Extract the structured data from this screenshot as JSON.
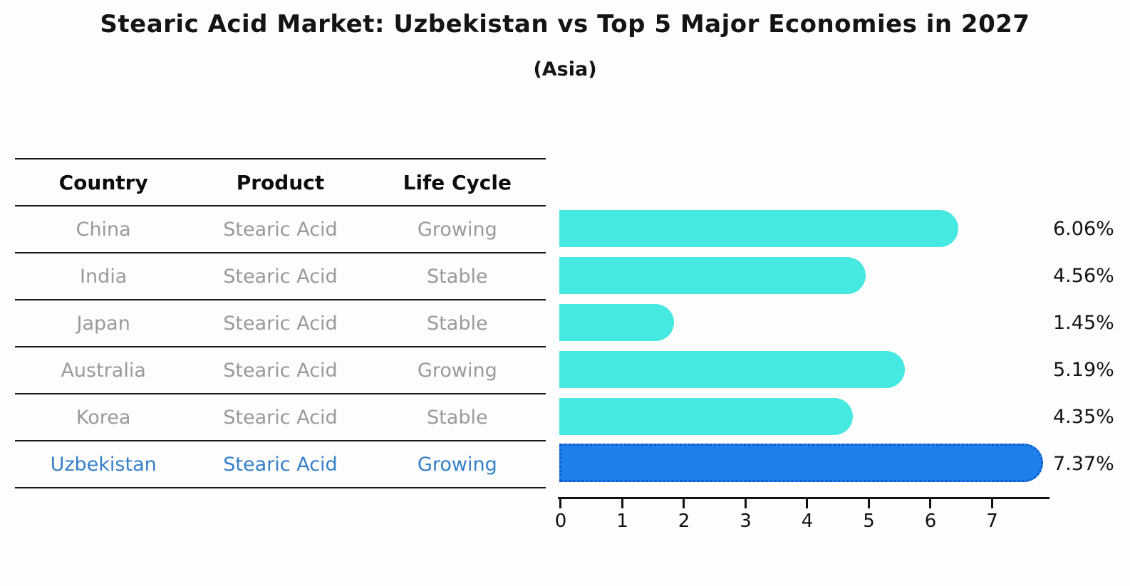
{
  "title": "Stearic Acid Market: Uzbekistan vs Top 5 Major Economies in 2027",
  "subtitle": "(Asia)",
  "table": {
    "headers": [
      "Country",
      "Product",
      "Life Cycle"
    ],
    "rows": [
      {
        "country": "China",
        "product": "Stearic Acid",
        "life_cycle": "Growing",
        "highlight": false
      },
      {
        "country": "India",
        "product": "Stearic Acid",
        "life_cycle": "Stable",
        "highlight": false
      },
      {
        "country": "Japan",
        "product": "Stearic Acid",
        "life_cycle": "Stable",
        "highlight": false
      },
      {
        "country": "Australia",
        "product": "Stearic Acid",
        "life_cycle": "Growing",
        "highlight": false
      },
      {
        "country": "Korea",
        "product": "Stearic Acid",
        "life_cycle": "Stable",
        "highlight": false
      },
      {
        "country": "Uzbekistan",
        "product": "Stearic Acid",
        "life_cycle": "Growing",
        "highlight": true
      }
    ]
  },
  "chart_data": {
    "type": "bar",
    "orientation": "horizontal",
    "title": "Stearic Acid Market: Uzbekistan vs Top 5 Major Economies in 2027",
    "subtitle": "(Asia)",
    "categories": [
      "China",
      "India",
      "Japan",
      "Australia",
      "Korea",
      "Uzbekistan"
    ],
    "values": [
      6.06,
      4.56,
      1.45,
      5.19,
      4.35,
      7.37
    ],
    "value_labels": [
      "6.06%",
      "4.56%",
      "1.45%",
      "5.19%",
      "4.35%",
      "7.37%"
    ],
    "x_ticks": [
      0,
      1,
      2,
      3,
      4,
      5,
      6,
      7
    ],
    "xlim": [
      0,
      7.9
    ],
    "xlabel": "",
    "ylabel": "",
    "grid": false,
    "legend": "none",
    "highlight_index": 5
  },
  "colors": {
    "bar": "#46e8e2",
    "highlight_bar": "#1e80ea",
    "highlight_bar_border": "#1059ce",
    "highlight_text": "#3580ca",
    "row_text": "#9a9a9a",
    "header_text": "#0d0d0d",
    "axis": "#111111",
    "background": "#fdfdfd"
  }
}
